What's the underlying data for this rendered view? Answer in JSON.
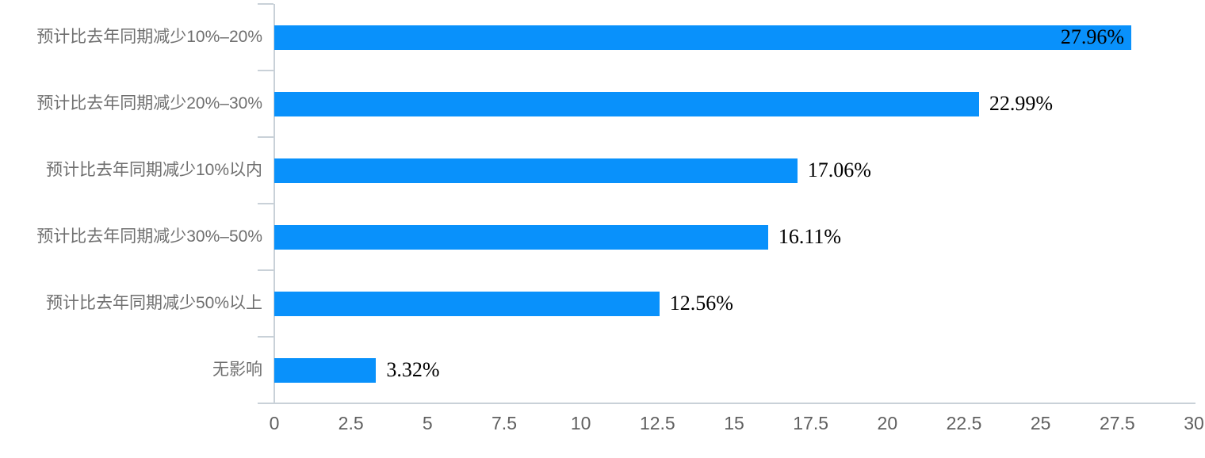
{
  "chart_data": {
    "type": "bar",
    "orientation": "horizontal",
    "title": "",
    "xlabel": "",
    "ylabel": "",
    "categories": [
      "预计比去年同期减少10%–20%",
      "预计比去年同期减少20%–30%",
      "预计比去年同期减少10%以内",
      "预计比去年同期减少30%–50%",
      "预计比去年同期减少50%以上",
      "无影响"
    ],
    "values": [
      27.96,
      22.99,
      17.06,
      16.11,
      12.56,
      3.32
    ],
    "value_labels": [
      "27.96%",
      "22.99%",
      "17.06%",
      "16.11%",
      "12.56%",
      "3.32%"
    ],
    "xlim": [
      0,
      30
    ],
    "x_ticks": [
      "0",
      "2.5",
      "5",
      "7.5",
      "10",
      "12.5",
      "15",
      "17.5",
      "20",
      "22.5",
      "25",
      "27.5",
      "30"
    ],
    "grid": false,
    "legend": false,
    "bar_color": "#0991fb",
    "axis_color": "#c9d1d8",
    "category_label_color": "#6f6f6f",
    "tick_label_color": "#606060",
    "value_label_color": "#000000"
  }
}
